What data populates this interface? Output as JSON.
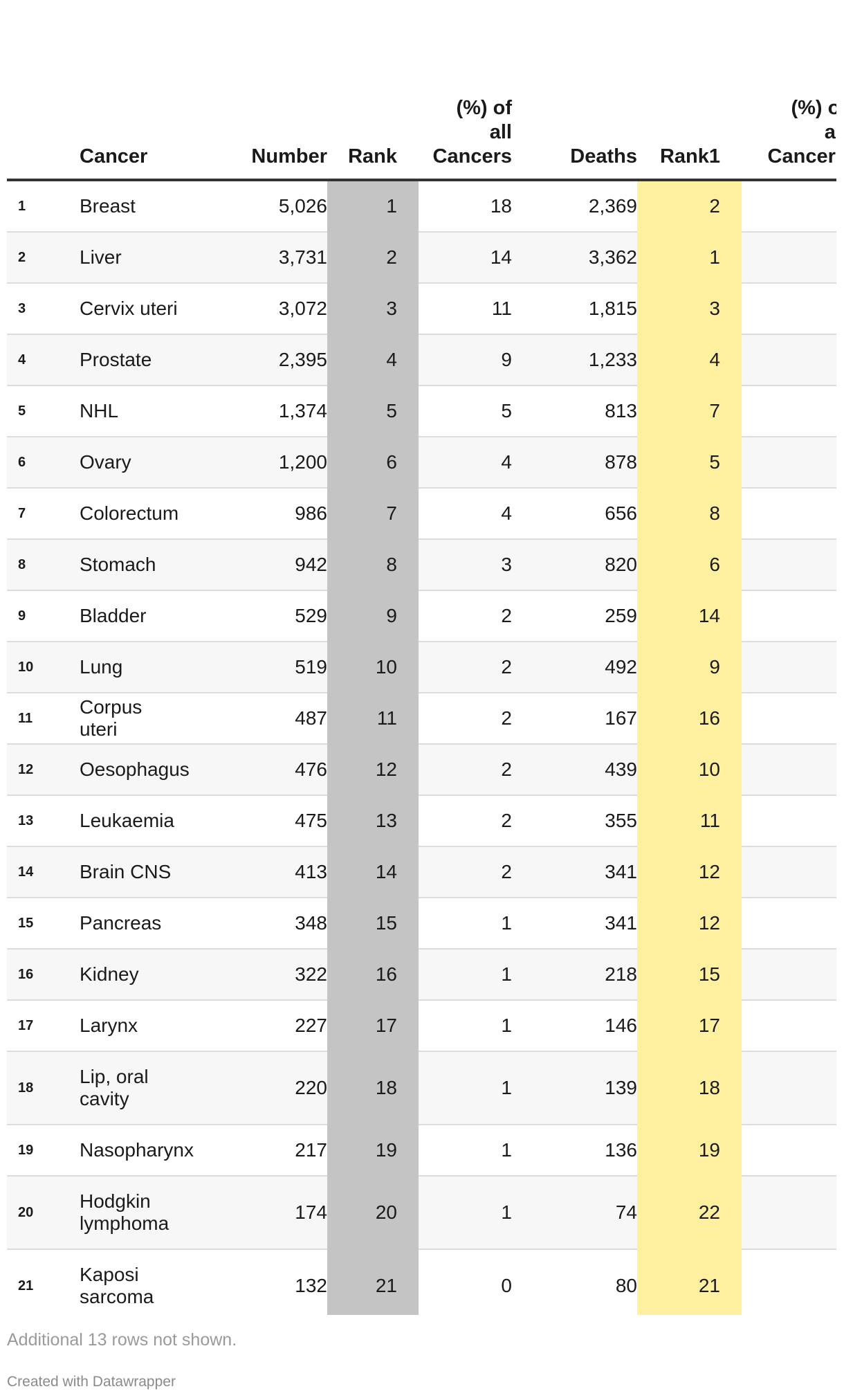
{
  "chart_data": {
    "type": "table",
    "columns": {
      "cancer": "Cancer",
      "number": "Number",
      "rank": "Rank",
      "pct": "(%) of all Cancers",
      "deaths": "Deaths",
      "rank1": "Rank1",
      "pct2": "(%) of all Cancers"
    },
    "rows": [
      {
        "idx": "1",
        "cancer": "Breast",
        "number": "5,026",
        "rank": "1",
        "pct": "18",
        "deaths": "2,369",
        "rank1": "2"
      },
      {
        "idx": "2",
        "cancer": "Liver",
        "number": "3,731",
        "rank": "2",
        "pct": "14",
        "deaths": "3,362",
        "rank1": "1"
      },
      {
        "idx": "3",
        "cancer": "Cervix uteri",
        "number": "3,072",
        "rank": "3",
        "pct": "11",
        "deaths": "1,815",
        "rank1": "3"
      },
      {
        "idx": "4",
        "cancer": "Prostate",
        "number": "2,395",
        "rank": "4",
        "pct": "9",
        "deaths": "1,233",
        "rank1": "4"
      },
      {
        "idx": "5",
        "cancer": "NHL",
        "number": "1,374",
        "rank": "5",
        "pct": "5",
        "deaths": "813",
        "rank1": "7"
      },
      {
        "idx": "6",
        "cancer": "Ovary",
        "number": "1,200",
        "rank": "6",
        "pct": "4",
        "deaths": "878",
        "rank1": "5"
      },
      {
        "idx": "7",
        "cancer": "Colorectum",
        "number": "986",
        "rank": "7",
        "pct": "4",
        "deaths": "656",
        "rank1": "8"
      },
      {
        "idx": "8",
        "cancer": "Stomach",
        "number": "942",
        "rank": "8",
        "pct": "3",
        "deaths": "820",
        "rank1": "6"
      },
      {
        "idx": "9",
        "cancer": "Bladder",
        "number": "529",
        "rank": "9",
        "pct": "2",
        "deaths": "259",
        "rank1": "14"
      },
      {
        "idx": "10",
        "cancer": "Lung",
        "number": "519",
        "rank": "10",
        "pct": "2",
        "deaths": "492",
        "rank1": "9"
      },
      {
        "idx": "11",
        "cancer": "Corpus uteri",
        "number": "487",
        "rank": "11",
        "pct": "2",
        "deaths": "167",
        "rank1": "16"
      },
      {
        "idx": "12",
        "cancer": "Oesophagus",
        "number": "476",
        "rank": "12",
        "pct": "2",
        "deaths": "439",
        "rank1": "10"
      },
      {
        "idx": "13",
        "cancer": "Leukaemia",
        "number": "475",
        "rank": "13",
        "pct": "2",
        "deaths": "355",
        "rank1": "11"
      },
      {
        "idx": "14",
        "cancer": "Brain CNS",
        "number": "413",
        "rank": "14",
        "pct": "2",
        "deaths": "341",
        "rank1": "12"
      },
      {
        "idx": "15",
        "cancer": "Pancreas",
        "number": "348",
        "rank": "15",
        "pct": "1",
        "deaths": "341",
        "rank1": "12"
      },
      {
        "idx": "16",
        "cancer": "Kidney",
        "number": "322",
        "rank": "16",
        "pct": "1",
        "deaths": "218",
        "rank1": "15"
      },
      {
        "idx": "17",
        "cancer": "Larynx",
        "number": "227",
        "rank": "17",
        "pct": "1",
        "deaths": "146",
        "rank1": "17"
      },
      {
        "idx": "18",
        "cancer": "Lip, oral cavity",
        "number": "220",
        "rank": "18",
        "pct": "1",
        "deaths": "139",
        "rank1": "18"
      },
      {
        "idx": "19",
        "cancer": "Nasopharynx",
        "number": "217",
        "rank": "19",
        "pct": "1",
        "deaths": "136",
        "rank1": "19"
      },
      {
        "idx": "20",
        "cancer": "Hodgkin lymphoma",
        "number": "174",
        "rank": "20",
        "pct": "1",
        "deaths": "74",
        "rank1": "22"
      },
      {
        "idx": "21",
        "cancer": "Kaposi sarcoma",
        "number": "132",
        "rank": "21",
        "pct": "0",
        "deaths": "80",
        "rank1": "21"
      }
    ],
    "highlight_colors": {
      "rank": "#c4c4c4",
      "rank1": "#fff0a0"
    }
  },
  "footer": {
    "note": "Additional 13 rows not shown.",
    "credit": "Created with Datawrapper"
  }
}
